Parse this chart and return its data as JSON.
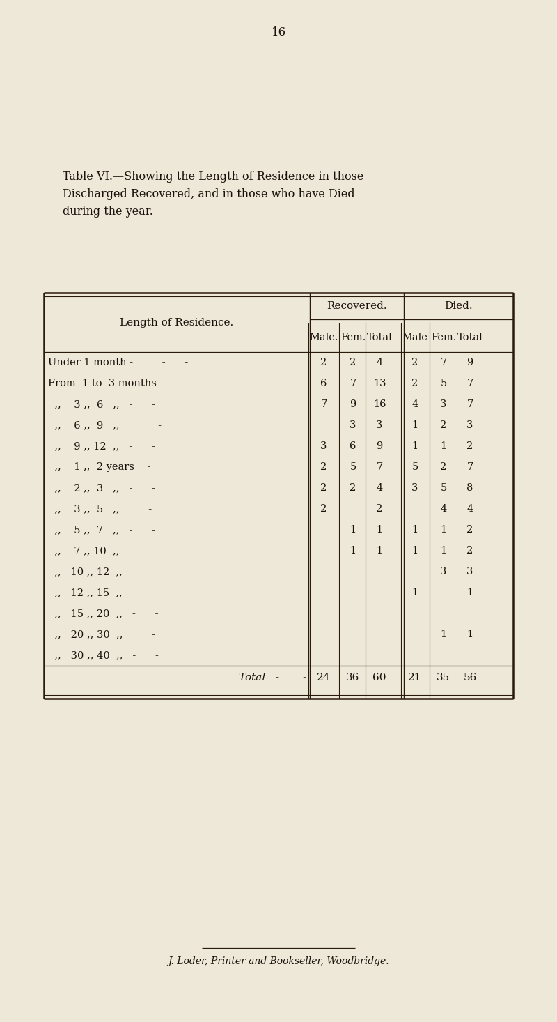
{
  "page_number": "16",
  "title_line1": "Table VI.—Showing the Length of Residence in those",
  "title_line2": "Discharged Recovered, and in those who have Died",
  "title_line3": "during the year.",
  "col_header1": "Recovered.",
  "col_header2": "Died.",
  "sub_headers": [
    "Male.",
    "Fem.",
    "Total",
    "Male",
    "Fem.",
    "Total"
  ],
  "row_header_col": "Length of Residence.",
  "rows": [
    {
      "label": "Under 1 month -         -      -",
      "r_male": "2",
      "r_fem": "2",
      "r_total": "4",
      "d_male": "2",
      "d_fem": "7",
      "d_total": "9"
    },
    {
      "label": "From  1 to  3 months  -",
      "r_male": "6",
      "r_fem": "7",
      "r_total": "13",
      "d_male": "2",
      "d_fem": "5",
      "d_total": "7"
    },
    {
      "label": "  ,,    3 ,,  6   ,,   -      -",
      "r_male": "7",
      "r_fem": "9",
      "r_total": "16",
      "d_male": "4",
      "d_fem": "3",
      "d_total": "7"
    },
    {
      "label": "  ,,    6 ,,  9   ,,            -",
      "r_male": "",
      "r_fem": "3",
      "r_total": "3",
      "d_male": "1",
      "d_fem": "2",
      "d_total": "3"
    },
    {
      "label": "  ,,    9 ,, 12  ,,   -      -",
      "r_male": "3",
      "r_fem": "6",
      "r_total": "9",
      "d_male": "1",
      "d_fem": "1",
      "d_total": "2"
    },
    {
      "label": "  ,,    1 ,,  2 years    -",
      "r_male": "2",
      "r_fem": "5",
      "r_total": "7",
      "d_male": "5",
      "d_fem": "2",
      "d_total": "7"
    },
    {
      "label": "  ,,    2 ,,  3   ,,   -      -",
      "r_male": "2",
      "r_fem": "2",
      "r_total": "4",
      "d_male": "3",
      "d_fem": "5",
      "d_total": "8"
    },
    {
      "label": "  ,,    3 ,,  5   ,,         -",
      "r_male": "2",
      "r_fem": "",
      "r_total": "2",
      "d_male": "",
      "d_fem": "4",
      "d_total": "4"
    },
    {
      "label": "  ,,    5 ,,  7   ,,   -      -",
      "r_male": "",
      "r_fem": "1",
      "r_total": "1",
      "d_male": "1",
      "d_fem": "1",
      "d_total": "2"
    },
    {
      "label": "  ,,    7 ,, 10  ,,         -",
      "r_male": "",
      "r_fem": "1",
      "r_total": "1",
      "d_male": "1",
      "d_fem": "1",
      "d_total": "2"
    },
    {
      "label": "  ,,   10 ,, 12  ,,   -      -",
      "r_male": "",
      "r_fem": "",
      "r_total": "",
      "d_male": "",
      "d_fem": "3",
      "d_total": "3"
    },
    {
      "label": "  ,,   12 ,, 15  ,,         -",
      "r_male": "",
      "r_fem": "",
      "r_total": "",
      "d_male": "1",
      "d_fem": "",
      "d_total": "1"
    },
    {
      "label": "  ,,   15 ,, 20  ,,   -      -",
      "r_male": "",
      "r_fem": "",
      "r_total": "",
      "d_male": "",
      "d_fem": "",
      "d_total": ""
    },
    {
      "label": "  ,,   20 ,, 30  ,,         -",
      "r_male": "",
      "r_fem": "",
      "r_total": "",
      "d_male": "",
      "d_fem": "1",
      "d_total": "1"
    },
    {
      "label": "  ,,   30 ,, 40  ,,   -      -",
      "r_male": "",
      "r_fem": "",
      "r_total": "",
      "d_male": "",
      "d_fem": "",
      "d_total": ""
    }
  ],
  "total_label": "Total   -       -",
  "total_row": {
    "r_male": "24",
    "r_fem": "36",
    "r_total": "60",
    "d_male": "21",
    "d_fem": "35",
    "d_total": "56"
  },
  "footer": "J. Loder, Printer and Bookseller, Woodbridge.",
  "bg_color": "#ede8d8",
  "text_color": "#1a120a",
  "line_color": "#2a1a0a",
  "title_fontsize": 11.5,
  "header_fontsize": 11,
  "sub_header_fontsize": 10.5,
  "row_label_fontsize": 10.5,
  "cell_fontsize": 10.5,
  "total_fontsize": 11
}
